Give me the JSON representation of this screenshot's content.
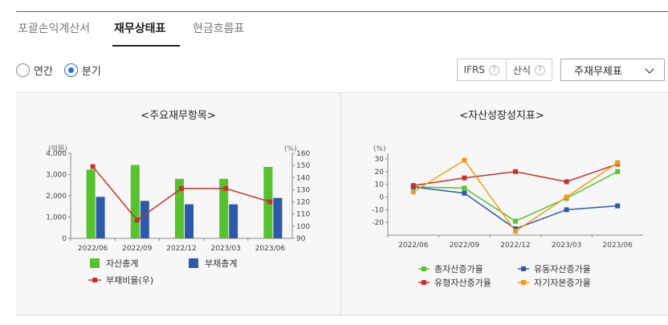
{
  "tabs": [
    "포괄손익계산서",
    "재무상태표",
    "현금흐름표"
  ],
  "period_options": [
    "연간",
    "분기"
  ],
  "selected_period": "분기",
  "toolbar": {
    "ifrs_label": "IFRS",
    "formula_label": "산식",
    "help_glyph": "?",
    "select_value": "주재무제표"
  },
  "chart_data": [
    {
      "type": "bar",
      "title": "<주요재무항목>",
      "categories": [
        "2022/06",
        "2022/09",
        "2022/12",
        "2023/03",
        "2023/06"
      ],
      "y_unit": "(억원)",
      "y2_unit": "(%)",
      "ylim": [
        0,
        4000
      ],
      "y_ticks": [
        "0",
        "1,000",
        "2,000",
        "3,000",
        "4,000"
      ],
      "y2lim": [
        90,
        160
      ],
      "y2_ticks": [
        "90",
        "100",
        "110",
        "120",
        "130",
        "140",
        "150",
        "160"
      ],
      "series": [
        {
          "name": "자산총계",
          "kind": "bar",
          "color": "#55c22e",
          "values": [
            3230,
            3450,
            2800,
            2800,
            3360
          ]
        },
        {
          "name": "부채총계",
          "kind": "bar",
          "color": "#2c5aa8",
          "values": [
            1950,
            1760,
            1600,
            1600,
            1900
          ]
        },
        {
          "name": "부채비율(우)",
          "kind": "line",
          "axis": "right",
          "color": "#c8312b",
          "values": [
            149,
            105,
            131,
            131,
            120
          ]
        }
      ],
      "legend": "bottom"
    },
    {
      "type": "line",
      "title": "<자산성장성지표>",
      "categories": [
        "2022/06",
        "2022/09",
        "2022/12",
        "2023/03",
        "2023/06"
      ],
      "y_unit": "(%)",
      "ylim": [
        -30,
        30
      ],
      "y_ticks": [
        "30",
        "20",
        "10",
        "0",
        "-10",
        "-20"
      ],
      "series": [
        {
          "name": "총자산증가율",
          "color": "#55c22e",
          "values": [
            8,
            7,
            -19,
            -1,
            20
          ]
        },
        {
          "name": "유동자산증가율",
          "color": "#2c5aa8",
          "values": [
            8,
            3,
            -25,
            -10,
            -7
          ]
        },
        {
          "name": "유형자산증가율",
          "color": "#c8312b",
          "values": [
            9,
            15,
            20,
            12,
            26
          ]
        },
        {
          "name": "자기자본증가율",
          "color": "#f39c12",
          "values": [
            4,
            29,
            -27,
            0,
            27
          ]
        }
      ],
      "legend": "bottom"
    }
  ]
}
